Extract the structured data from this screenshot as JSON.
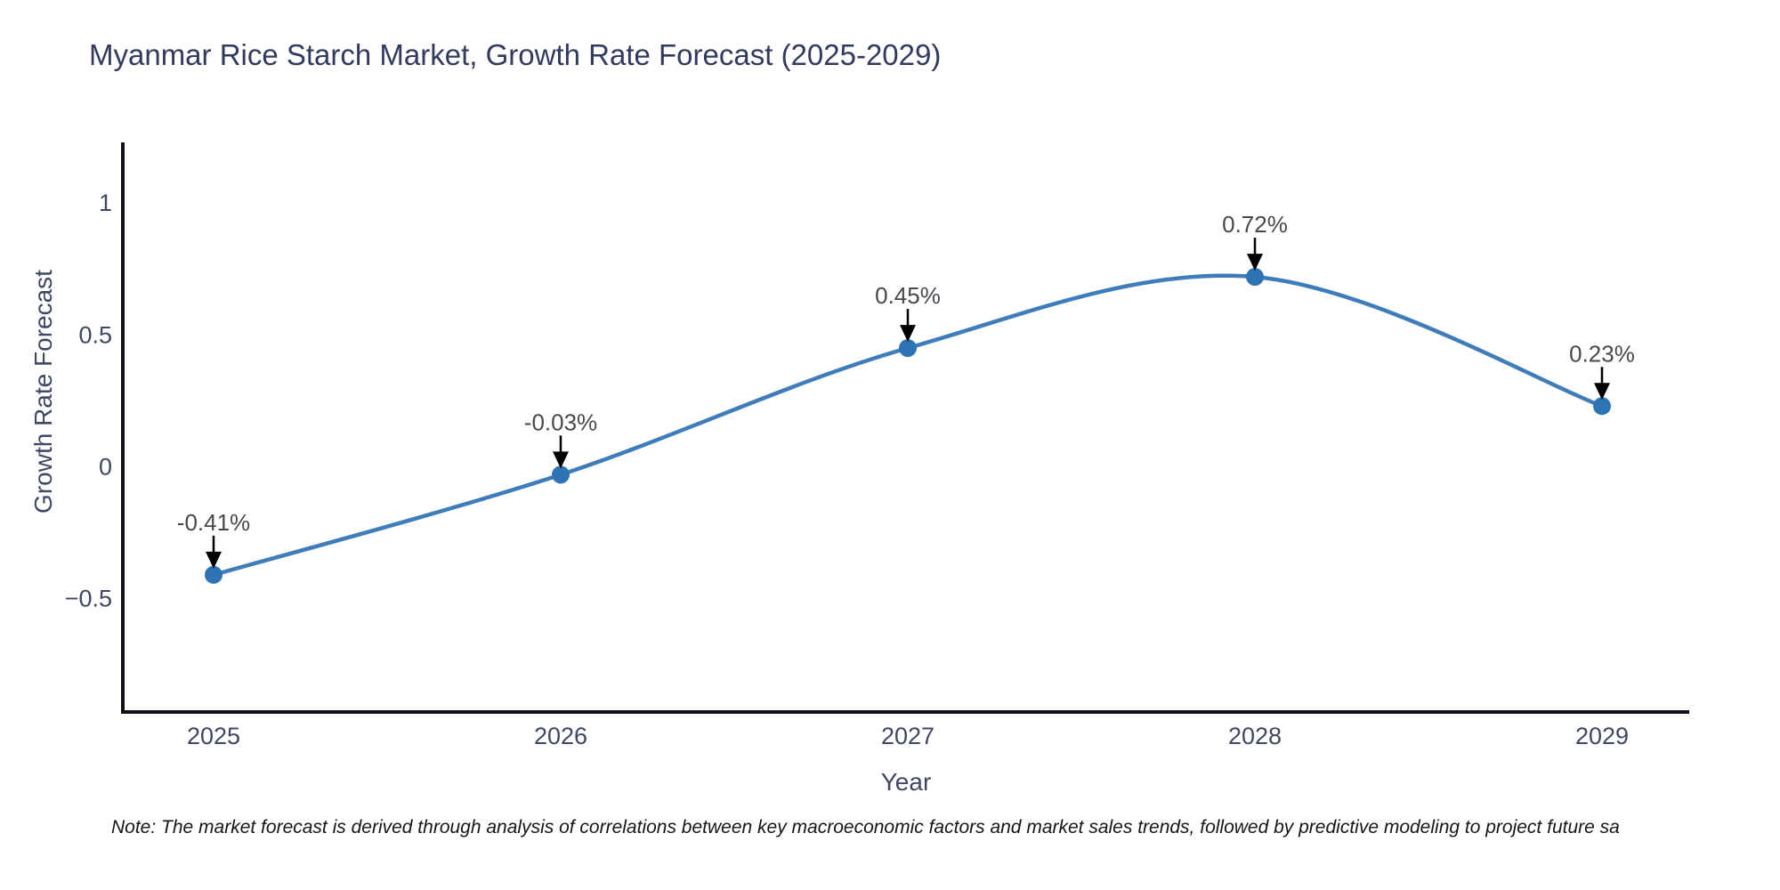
{
  "note": {
    "text": "Note: The market forecast is derived through analysis of correlations between key macroeconomic factors and market sales trends, followed by predictive modeling to project future sa"
  },
  "chart_data": {
    "type": "line",
    "title": "Myanmar Rice Starch Market, Growth Rate Forecast (2025-2029)",
    "xlabel": "Year",
    "ylabel": "Growth Rate Forecast",
    "categories": [
      "2025",
      "2026",
      "2027",
      "2028",
      "2029"
    ],
    "values": [
      -0.41,
      -0.03,
      0.45,
      0.72,
      0.23
    ],
    "point_labels": [
      "-0.41%",
      "-0.03%",
      "0.45%",
      "0.72%",
      "0.23%"
    ],
    "ytick_values": [
      1,
      0.5,
      0,
      -0.5
    ],
    "ytick_labels": [
      "1",
      "0.5",
      "0",
      "−0.5"
    ],
    "ylim": [
      -0.93,
      1.23
    ],
    "grid": false,
    "legend": "none",
    "line_color": "#3f7cba",
    "marker_color": "#2e74b4",
    "axis_color": "#101018",
    "tick_color": "#3f4862",
    "annotation_color": "#47494f",
    "annotation_arrow_color": "#000000",
    "background_color": "#ffffff"
  }
}
